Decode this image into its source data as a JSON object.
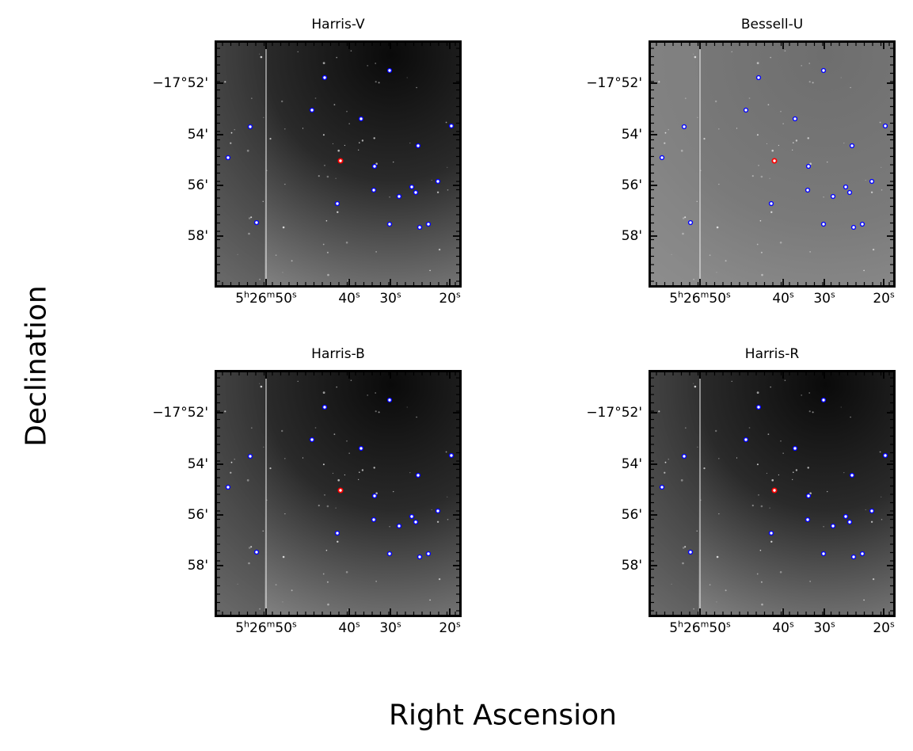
{
  "axis_labels": {
    "x": "Right Ascension",
    "y": "Declination"
  },
  "tick_labels": {
    "dec": [
      "−17°52'",
      "54'",
      "56'",
      "58'"
    ],
    "ra": [
      {
        "h": "5",
        "m": "26",
        "s": "50"
      },
      {
        "s": "40"
      },
      {
        "s": "30"
      },
      {
        "s": "20"
      }
    ]
  },
  "colors": {
    "target": "#ff0000",
    "comparison": "#0000ff",
    "frame": "#000000"
  },
  "panels": [
    {
      "title": "Harris-V",
      "tone": "dark"
    },
    {
      "title": "Bessell-U",
      "tone": "gray"
    },
    {
      "title": "Harris-B",
      "tone": "dark"
    },
    {
      "title": "Harris-R",
      "tone": "dark"
    }
  ]
}
